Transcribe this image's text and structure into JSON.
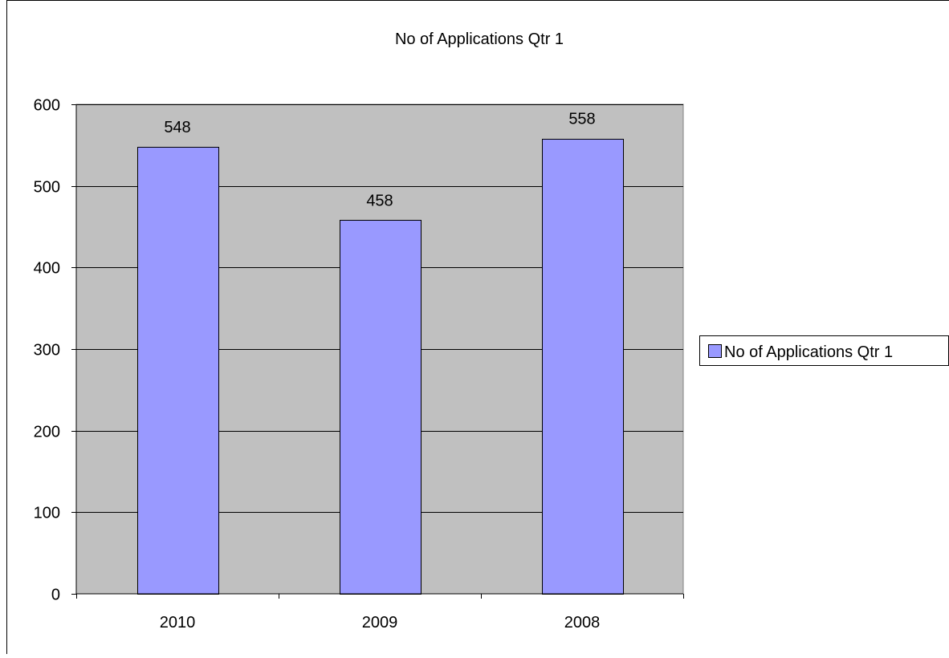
{
  "chart_data": {
    "type": "bar",
    "title": "No of Applications Qtr 1",
    "xlabel": "",
    "ylabel": "",
    "categories": [
      "2010",
      "2009",
      "2008"
    ],
    "series": [
      {
        "name": "No of Applications Qtr 1",
        "values": [
          548,
          458,
          558
        ]
      }
    ],
    "data_labels": [
      "548",
      "458",
      "558"
    ],
    "y_ticks": [
      "0",
      "100",
      "200",
      "300",
      "400",
      "500",
      "600"
    ],
    "ylim": [
      0,
      600
    ],
    "grid": true,
    "legend": "right",
    "colors": {
      "bar_fill": "#9999ff",
      "plot_background": "#c0c0c0",
      "border": "#000000",
      "gridline": "#000000"
    }
  }
}
